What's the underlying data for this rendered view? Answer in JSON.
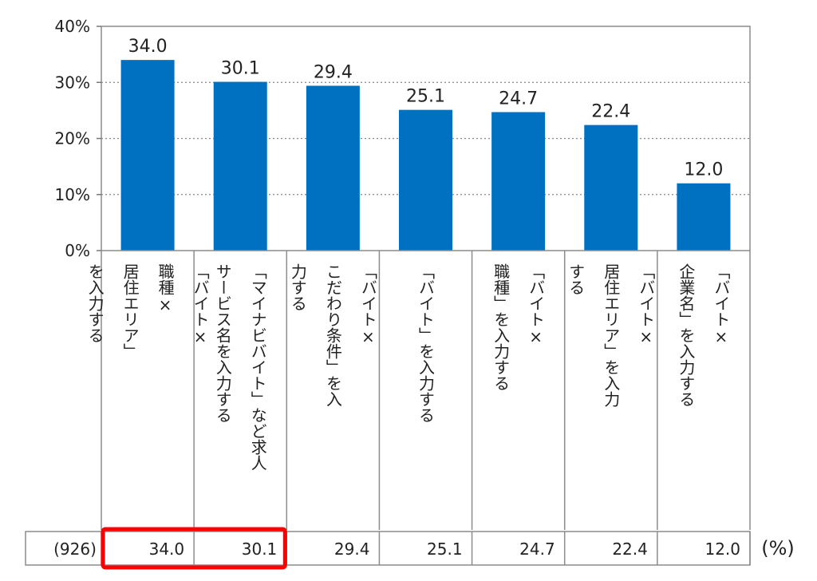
{
  "chart_data": {
    "type": "bar",
    "categories": [
      [
        "「バイト×",
        "職種×",
        "居住エリア」",
        "を入力する"
      ],
      [
        "「マイナビバイト」など求人",
        "サービス名を入力する"
      ],
      [
        "「バイト×",
        "こだわり条件」を入",
        "力する"
      ],
      [
        "「バイト」を入力する"
      ],
      [
        "「バイト×",
        "職種」を入力する"
      ],
      [
        "「バイト×",
        "居住エリア」を入力",
        "する"
      ],
      [
        "「バイト×",
        "企業名」を入力する"
      ]
    ],
    "values": [
      34.0,
      30.1,
      29.4,
      25.1,
      24.7,
      22.4,
      12.0
    ],
    "value_labels": [
      "34.0",
      "30.1",
      "29.4",
      "25.1",
      "24.7",
      "22.4",
      "12.0"
    ],
    "ylim": [
      0,
      40
    ],
    "yticks": [
      {
        "value": 0,
        "label": "0%"
      },
      {
        "value": 10,
        "label": "10%"
      },
      {
        "value": 20,
        "label": "20%"
      },
      {
        "value": 30,
        "label": "30%"
      },
      {
        "value": 40,
        "label": "40%"
      }
    ],
    "grid": "horizontal-dotted",
    "bar_color": "#0070C0",
    "highlight_color": "#FF0000",
    "highlighted_indices": [
      0,
      1
    ]
  },
  "table": {
    "sample_label": "(926)",
    "unit_label": "(%)"
  }
}
